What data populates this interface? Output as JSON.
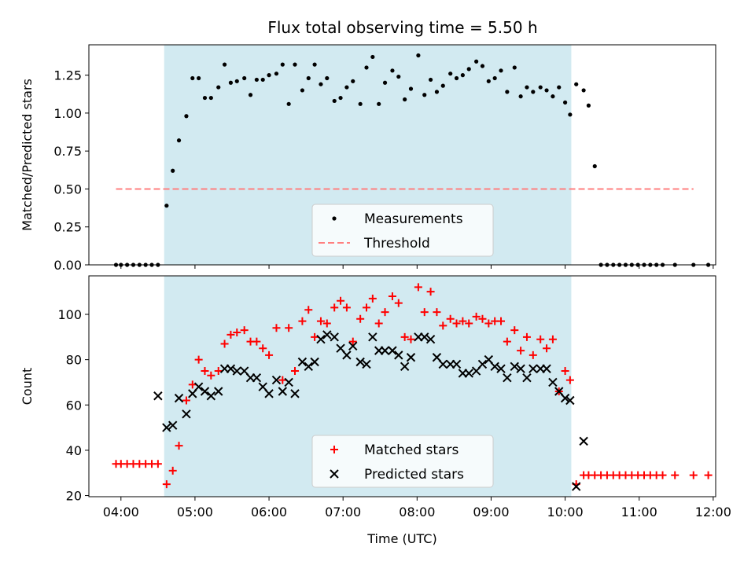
{
  "figure_title": "Flux total observing time = 5.50 h",
  "colors": {
    "observing_window": "#add8e6",
    "matched": "#ff0000",
    "predicted": "#000000",
    "threshold": "#ff7f7f",
    "measurement": "#000000"
  },
  "chart_data": [
    {
      "type": "scatter",
      "ylabel": "Matched/Predicted stars",
      "ylim": [
        0,
        1.45
      ],
      "xlim": [
        "03:34",
        "12:02"
      ],
      "yticks": [
        "0.00",
        "0.25",
        "0.50",
        "0.75",
        "1.00",
        "1.25"
      ],
      "shaded_span": [
        "04:35",
        "10:05"
      ],
      "grid": false,
      "legend_position": "lower-center",
      "series": [
        {
          "name": "Measurements",
          "marker": "dot",
          "x": [
            "03:56",
            "04:00",
            "04:05",
            "04:10",
            "04:15",
            "04:20",
            "04:25",
            "04:30",
            "04:37",
            "04:42",
            "04:47",
            "04:53",
            "04:58",
            "05:03",
            "05:08",
            "05:13",
            "05:19",
            "05:24",
            "05:29",
            "05:34",
            "05:40",
            "05:45",
            "05:50",
            "05:55",
            "06:00",
            "06:06",
            "06:11",
            "06:16",
            "06:21",
            "06:27",
            "06:32",
            "06:37",
            "06:42",
            "06:47",
            "06:53",
            "06:58",
            "07:03",
            "07:08",
            "07:14",
            "07:19",
            "07:24",
            "07:29",
            "07:34",
            "07:40",
            "07:45",
            "07:50",
            "07:55",
            "08:01",
            "08:06",
            "08:11",
            "08:16",
            "08:21",
            "08:27",
            "08:32",
            "08:37",
            "08:42",
            "08:48",
            "08:53",
            "08:58",
            "09:03",
            "09:08",
            "09:13",
            "09:19",
            "09:24",
            "09:29",
            "09:34",
            "09:40",
            "09:45",
            "09:50",
            "09:55",
            "10:00",
            "10:04",
            "10:09",
            "10:15",
            "10:19",
            "10:24",
            "10:29",
            "10:34",
            "10:39",
            "10:44",
            "10:49",
            "10:54",
            "10:59",
            "11:04",
            "11:09",
            "11:14",
            "11:19",
            "11:29",
            "11:44",
            "11:56"
          ],
          "y": [
            0,
            0,
            0,
            0,
            0,
            0,
            0,
            0,
            0.39,
            0.62,
            0.82,
            0.98,
            1.23,
            1.23,
            1.1,
            1.1,
            1.17,
            1.32,
            1.2,
            1.21,
            1.23,
            1.12,
            1.22,
            1.22,
            1.25,
            1.26,
            1.32,
            1.06,
            1.32,
            1.15,
            1.23,
            1.32,
            1.19,
            1.23,
            1.08,
            1.1,
            1.17,
            1.21,
            1.06,
            1.3,
            1.37,
            1.06,
            1.2,
            1.28,
            1.24,
            1.09,
            1.16,
            1.38,
            1.12,
            1.22,
            1.14,
            1.18,
            1.26,
            1.23,
            1.25,
            1.29,
            1.34,
            1.31,
            1.21,
            1.23,
            1.28,
            1.14,
            1.3,
            1.11,
            1.17,
            1.14,
            1.17,
            1.15,
            1.11,
            1.17,
            1.07,
            0.99,
            1.19,
            1.15,
            1.05,
            0.65,
            0,
            0,
            0,
            0,
            0,
            0,
            0,
            0,
            0,
            0,
            0,
            0,
            0,
            0
          ]
        },
        {
          "name": "Threshold",
          "marker": "dashed-line",
          "x": [
            "03:56",
            "11:44"
          ],
          "y": [
            0.5,
            0.5
          ]
        }
      ]
    },
    {
      "type": "scatter",
      "xlabel": "Time (UTC)",
      "ylabel": "Count",
      "ylim": [
        19.5,
        117
      ],
      "xlim": [
        "03:34",
        "12:02"
      ],
      "xticks": [
        "04:00",
        "05:00",
        "06:00",
        "07:00",
        "08:00",
        "09:00",
        "10:00",
        "11:00",
        "12:00"
      ],
      "yticks": [
        "20",
        "40",
        "60",
        "80",
        "100"
      ],
      "shaded_span": [
        "04:35",
        "10:05"
      ],
      "grid": false,
      "legend_position": "lower-center",
      "series": [
        {
          "name": "Matched stars",
          "marker": "plus",
          "x": [
            "03:56",
            "04:00",
            "04:05",
            "04:10",
            "04:15",
            "04:20",
            "04:25",
            "04:30",
            "04:37",
            "04:42",
            "04:47",
            "04:53",
            "04:58",
            "05:03",
            "05:08",
            "05:13",
            "05:19",
            "05:24",
            "05:29",
            "05:34",
            "05:40",
            "05:45",
            "05:50",
            "05:55",
            "06:00",
            "06:06",
            "06:11",
            "06:16",
            "06:21",
            "06:27",
            "06:32",
            "06:37",
            "06:42",
            "06:47",
            "06:53",
            "06:58",
            "07:03",
            "07:08",
            "07:14",
            "07:19",
            "07:24",
            "07:29",
            "07:34",
            "07:40",
            "07:45",
            "07:50",
            "07:55",
            "08:01",
            "08:06",
            "08:11",
            "08:16",
            "08:21",
            "08:27",
            "08:32",
            "08:37",
            "08:42",
            "08:48",
            "08:53",
            "08:58",
            "09:03",
            "09:08",
            "09:13",
            "09:19",
            "09:24",
            "09:29",
            "09:34",
            "09:40",
            "09:45",
            "09:50",
            "09:55",
            "10:00",
            "10:04",
            "10:09",
            "10:15",
            "10:19",
            "10:24",
            "10:29",
            "10:34",
            "10:39",
            "10:44",
            "10:49",
            "10:54",
            "10:59",
            "11:04",
            "11:09",
            "11:14",
            "11:19",
            "11:29",
            "11:44",
            "11:56"
          ],
          "y": [
            34,
            34,
            34,
            34,
            34,
            34,
            34,
            34,
            25,
            31,
            42,
            62,
            69,
            80,
            75,
            73,
            75,
            87,
            91,
            92,
            93,
            88,
            88,
            85,
            82,
            94,
            71,
            94,
            75,
            97,
            102,
            90,
            97,
            96,
            103,
            106,
            103,
            88,
            98,
            103,
            107,
            96,
            101,
            108,
            105,
            90,
            89,
            112,
            101,
            110,
            101,
            95,
            98,
            96,
            97,
            96,
            99,
            98,
            96,
            97,
            97,
            88,
            93,
            84,
            90,
            82,
            89,
            85,
            89,
            66,
            75,
            71,
            25,
            29,
            29,
            29,
            29,
            29,
            29,
            29,
            29,
            29,
            29,
            29,
            29,
            29,
            29,
            29,
            29,
            29
          ]
        },
        {
          "name": "Predicted stars",
          "marker": "cross",
          "x": [
            "04:30",
            "04:37",
            "04:42",
            "04:47",
            "04:53",
            "04:58",
            "05:03",
            "05:08",
            "05:13",
            "05:19",
            "05:24",
            "05:29",
            "05:34",
            "05:40",
            "05:45",
            "05:50",
            "05:55",
            "06:00",
            "06:06",
            "06:11",
            "06:16",
            "06:21",
            "06:27",
            "06:32",
            "06:37",
            "06:42",
            "06:47",
            "06:53",
            "06:58",
            "07:03",
            "07:08",
            "07:14",
            "07:19",
            "07:24",
            "07:29",
            "07:34",
            "07:40",
            "07:45",
            "07:50",
            "07:55",
            "08:01",
            "08:06",
            "08:11",
            "08:16",
            "08:21",
            "08:27",
            "08:32",
            "08:37",
            "08:42",
            "08:48",
            "08:53",
            "08:58",
            "09:03",
            "09:08",
            "09:13",
            "09:19",
            "09:24",
            "09:29",
            "09:34",
            "09:40",
            "09:45",
            "09:50",
            "09:55",
            "10:00",
            "10:04",
            "10:09",
            "10:15"
          ],
          "y": [
            64,
            50,
            51,
            63,
            56,
            65,
            68,
            66,
            64,
            66,
            76,
            76,
            75,
            75,
            72,
            72,
            68,
            65,
            71,
            66,
            70,
            65,
            79,
            77,
            79,
            89,
            91,
            90,
            85,
            82,
            86,
            79,
            78,
            90,
            84,
            84,
            84,
            82,
            77,
            81,
            90,
            90,
            89,
            81,
            78,
            78,
            78,
            74,
            74,
            75,
            78,
            80,
            77,
            76,
            72,
            77,
            76,
            72,
            76,
            76,
            76,
            70,
            66,
            63,
            62,
            24,
            44
          ]
        }
      ]
    }
  ]
}
